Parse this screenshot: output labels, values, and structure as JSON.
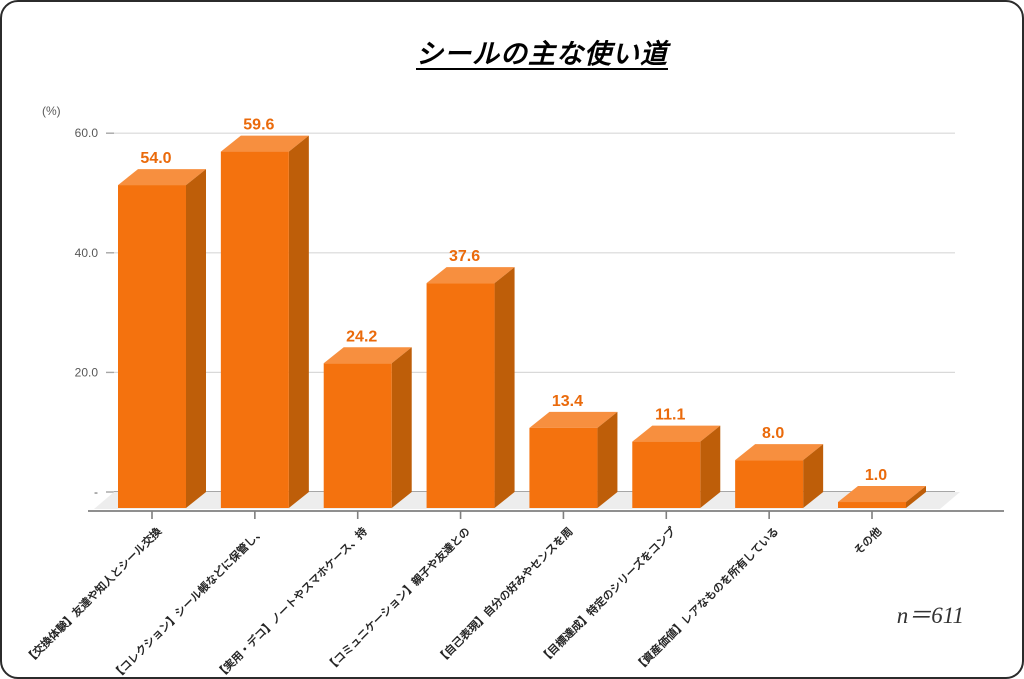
{
  "title": "シールの主な使い道",
  "footnote": "n＝611",
  "y_axis": {
    "unit": "(%)",
    "tick_labels": [
      "60.0",
      "40.0",
      "20.0",
      "-"
    ],
    "tick_values": [
      60,
      40,
      20,
      0
    ]
  },
  "chart_data": {
    "type": "bar",
    "style": "3d-column",
    "title": "シールの主な使い道",
    "ylabel": "(%)",
    "ylim": [
      0,
      60
    ],
    "gridlines": [
      60,
      40,
      20,
      0
    ],
    "grid": true,
    "legend": false,
    "sample_note": "n＝611",
    "categories": [
      "【交換体験】友達や知人とシール交換",
      "【コレクション】シール帳などに保管し、",
      "【実用・デコ】ノートやスマホケース、持",
      "【コミュニケーション】親子や友達との",
      "【自己表現】自分の好みやセンスを周",
      "【目標達成】特定のシリーズをコンプ",
      "【資産価値】レアなものを所有している",
      "その他"
    ],
    "values": [
      54.0,
      59.6,
      24.2,
      37.6,
      13.4,
      11.1,
      8.0,
      1.0
    ],
    "value_labels": [
      "54.0",
      "59.6",
      "24.2",
      "37.6",
      "13.4",
      "11.1",
      "8.0",
      "1.0"
    ],
    "colors": {
      "bar_front": "#F4720E",
      "bar_top": "#F78F3F",
      "bar_side": "#BE5E09",
      "value_label": "#EA6A0B",
      "gridline": "#D9D9D9",
      "zero_line": "#898989",
      "axis_line": "#7F7F7F",
      "floor": "#EDEDED",
      "y_tick_label": "#595959",
      "category_label": "#262626"
    }
  }
}
